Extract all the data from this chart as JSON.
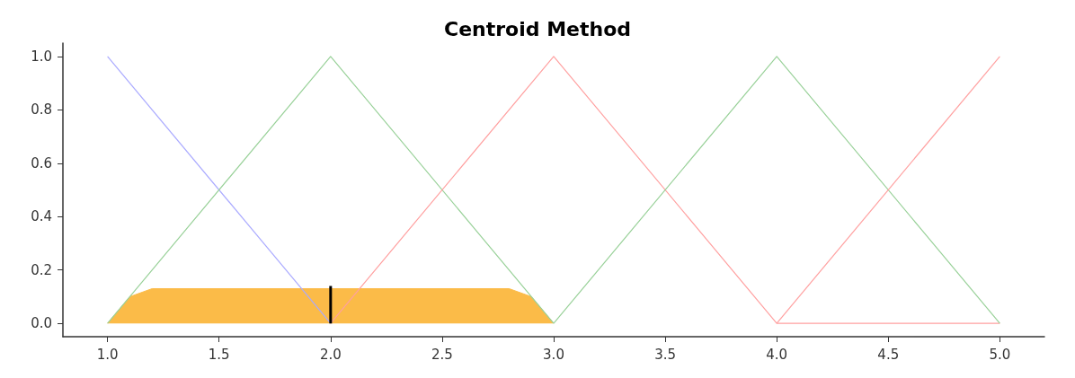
{
  "chart_data": {
    "type": "line",
    "title": "Centroid Method",
    "series": [
      {
        "type": "area",
        "color": "#fbbb48",
        "x": [
          1,
          1.1,
          1.2,
          2.8,
          2.9,
          3
        ],
        "values": [
          0,
          0.1,
          0.13,
          0.13,
          0.1,
          0
        ]
      },
      {
        "color": "#aaaaff",
        "x": [
          1,
          2
        ],
        "values": [
          1,
          0
        ]
      },
      {
        "color": "#99d199",
        "x": [
          1,
          2,
          3
        ],
        "values": [
          0,
          1,
          0
        ]
      },
      {
        "color": "#ffa0a0",
        "x": [
          2,
          3,
          4,
          5
        ],
        "values": [
          0,
          1,
          0,
          0
        ]
      },
      {
        "color": "#99d199",
        "x": [
          3,
          4,
          5
        ],
        "values": [
          0,
          1,
          0
        ]
      },
      {
        "color": "#ffa0a0",
        "x": [
          4,
          5
        ],
        "values": [
          0,
          1
        ]
      },
      {
        "color": "#000000",
        "x": [
          2,
          2
        ],
        "values": [
          0,
          0.14
        ]
      }
    ],
    "xlim": [
      0.8,
      5.2
    ],
    "xticks": [
      {
        "value": 1,
        "label": "1.0"
      },
      1.5,
      {
        "value": 2,
        "label": "2.0"
      },
      2.5,
      {
        "value": 3,
        "label": "3.0"
      },
      3.5,
      {
        "value": 4,
        "label": "4.0"
      },
      4.5,
      {
        "value": 5,
        "label": "5.0"
      }
    ],
    "ylim": [
      -0.05,
      1.05
    ],
    "yticks": [
      {
        "value": 0,
        "label": "0.0"
      },
      0.2,
      0.4,
      0.6,
      0.8,
      {
        "value": 1,
        "label": "1.0"
      }
    ],
    "grid": false,
    "marker": "none",
    "line_style": "solid"
  }
}
